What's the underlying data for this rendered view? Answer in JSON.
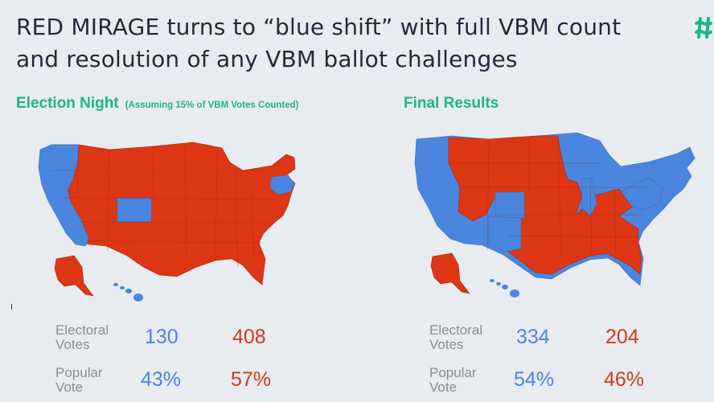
{
  "title_line1": "RED MIRAGE turns to “blue shift” with full VBM count",
  "title_line2": "and resolution of any VBM ballot challenges",
  "logo_icon": "brand-hash-logo-icon",
  "colors": {
    "republican": "#dd3614",
    "democrat": "#4a86e0",
    "accent": "#1fb585"
  },
  "left_panel": {
    "heading": "Election Night",
    "subheading": "(Assuming 15% of VBM Votes Counted)",
    "electoral_label_1": "Electoral",
    "electoral_label_2": "Votes",
    "popular_label_1": "Popular",
    "popular_label_2": "Vote",
    "electoral_dem": "130",
    "electoral_rep": "408",
    "popular_dem": "43%",
    "popular_rep": "57%"
  },
  "right_panel": {
    "heading": "Final Results",
    "electoral_label_1": "Electoral",
    "electoral_label_2": "Votes",
    "popular_label_1": "Popular",
    "popular_label_2": "Vote",
    "electoral_dem": "334",
    "electoral_rep": "204",
    "popular_dem": "54%",
    "popular_rep": "46%"
  }
}
